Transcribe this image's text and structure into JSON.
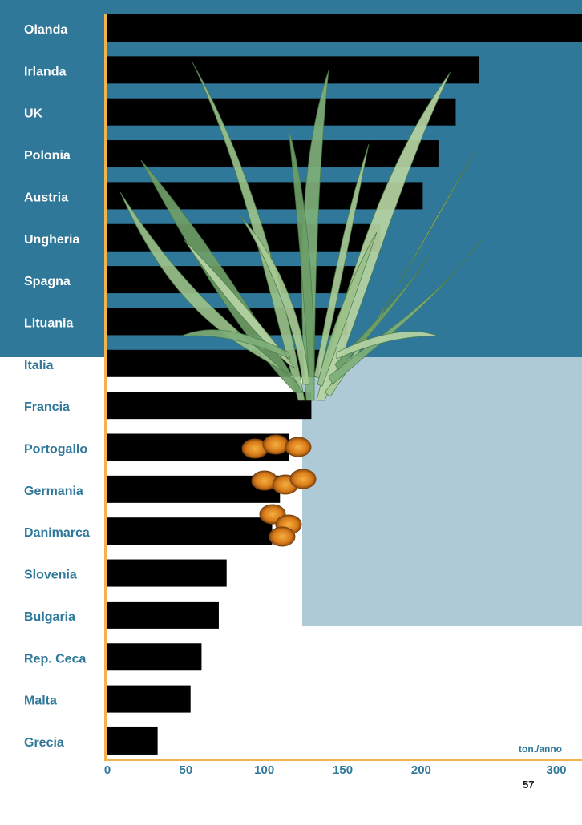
{
  "chart_data": {
    "type": "bar",
    "orientation": "horizontal",
    "categories": [
      "Olanda",
      "Irlanda",
      "UK",
      "Polonia",
      "Austria",
      "Ungheria",
      "Spagna",
      "Lituania",
      "Italia",
      "Francia",
      "Portogallo",
      "Germania",
      "Danimarca",
      "Slovenia",
      "Bulgaria",
      "Rep. Ceca",
      "Malta",
      "Grecia"
    ],
    "values": [
      320,
      237,
      222,
      211,
      201,
      174,
      160,
      153,
      135,
      130,
      116,
      110,
      105,
      76,
      71,
      60,
      53,
      32
    ],
    "x_ticks": [
      0,
      50,
      100,
      150,
      200,
      300
    ],
    "xlabel": "ton./anno",
    "xlim": [
      0,
      310
    ],
    "bar_color": "#000000",
    "label_color_top": "#ffffff",
    "label_color_bottom": "#2f7899",
    "tick_color": "#2f7899",
    "axis_color": "#f2b24c"
  },
  "page_number": "57"
}
